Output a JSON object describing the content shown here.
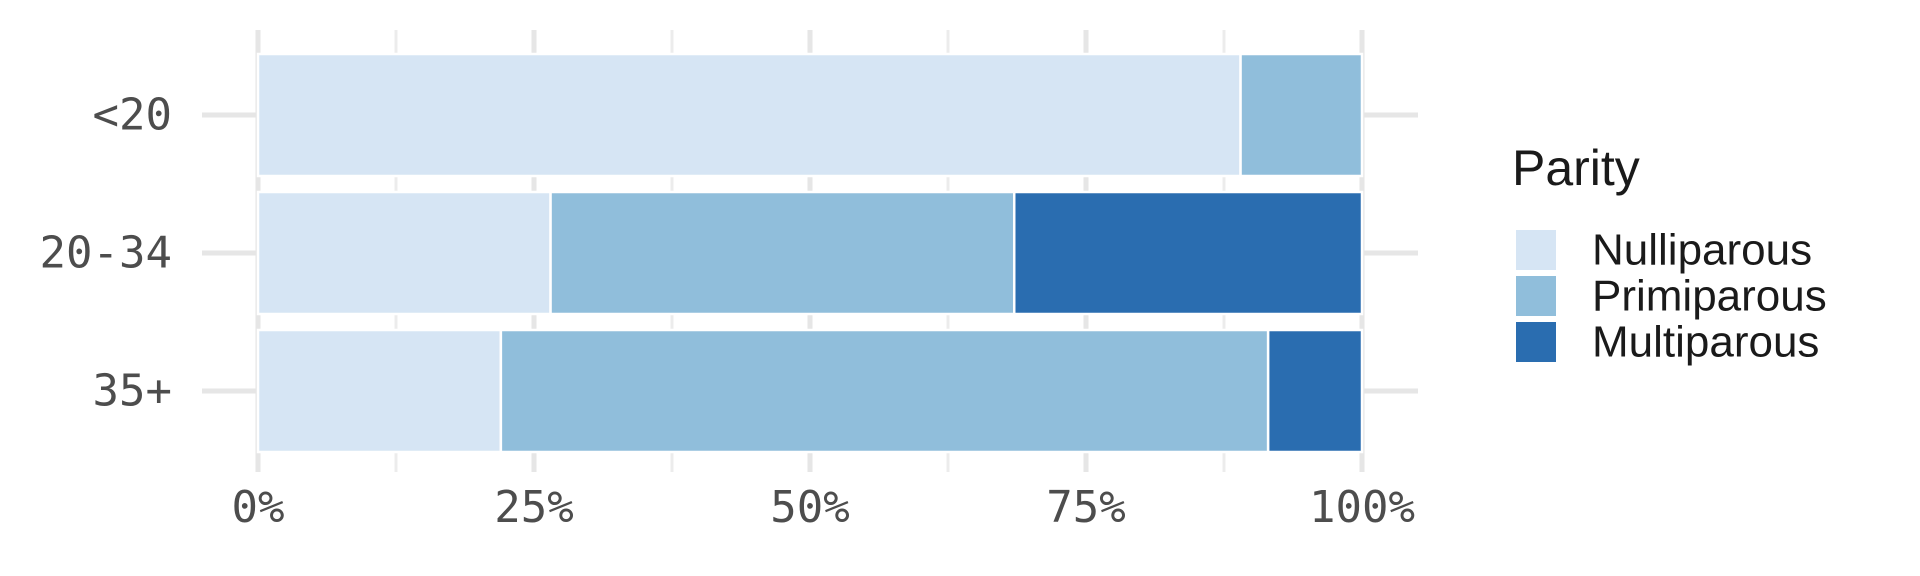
{
  "chart_data": {
    "type": "bar",
    "orientation": "horizontal",
    "stacked": true,
    "normalized": true,
    "categories": [
      "<20",
      "20-34",
      "35+"
    ],
    "series": [
      {
        "name": "Nulliparous",
        "color": "#d6e5f4",
        "values": [
          0.89,
          0.265,
          0.22
        ]
      },
      {
        "name": "Primiparous",
        "color": "#90bedb",
        "values": [
          0.11,
          0.42,
          0.695
        ]
      },
      {
        "name": "Multiparous",
        "color": "#2a6db0",
        "values": [
          0.0,
          0.315,
          0.085
        ]
      }
    ],
    "x_ticks": [
      {
        "value": 0,
        "label": "0%"
      },
      {
        "value": 0.25,
        "label": "25%"
      },
      {
        "value": 0.5,
        "label": "50%"
      },
      {
        "value": 0.75,
        "label": "75%"
      },
      {
        "value": 1,
        "label": "100%"
      }
    ],
    "xlim": [
      0,
      1
    ],
    "grid": true,
    "legend": {
      "title": "Parity",
      "position": "right"
    },
    "title": "",
    "xlabel": "",
    "ylabel": ""
  }
}
